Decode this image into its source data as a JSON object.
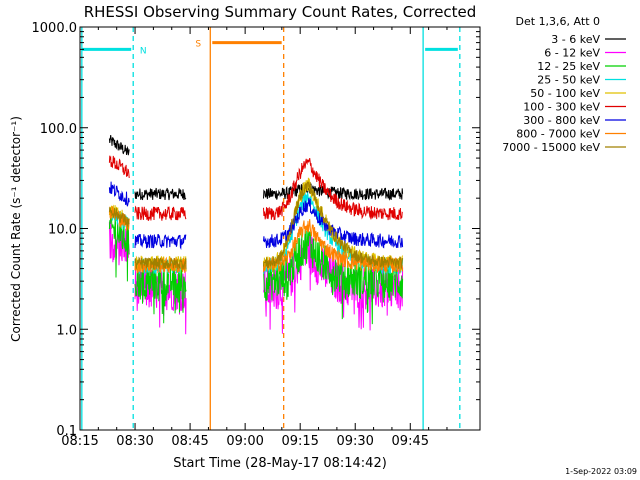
{
  "chart_data": {
    "type": "line",
    "title": "RHESSI Observing Summary Count Rates, Corrected",
    "xlabel": "Start Time (28-May-17 08:14:42)",
    "ylabel": "Corrected Count Rate (s⁻¹ detector⁻¹)",
    "x_unit": "minutes of day",
    "xlim": [
      495,
      604
    ],
    "ylim": [
      0.1,
      1000
    ],
    "yscale": "log",
    "grid": false,
    "legend_position": "outside-right",
    "x_ticks": [
      {
        "t": 495,
        "label": "08:15"
      },
      {
        "t": 510,
        "label": "08:30"
      },
      {
        "t": 525,
        "label": "08:45"
      },
      {
        "t": 540,
        "label": "09:00"
      },
      {
        "t": 555,
        "label": "09:15"
      },
      {
        "t": 570,
        "label": "09:30"
      },
      {
        "t": 585,
        "label": "09:45"
      }
    ],
    "y_ticks": [
      {
        "v": 0.1,
        "label": "0.1"
      },
      {
        "v": 1,
        "label": "1.0"
      },
      {
        "v": 10,
        "label": "10.0"
      },
      {
        "v": 100,
        "label": "100.0"
      },
      {
        "v": 1000,
        "label": "1000.0"
      }
    ],
    "legend_title": "Det 1,3,6, Att 0",
    "series": [
      {
        "name": "3 - 6 keV",
        "color": "#000000",
        "base": 22,
        "burst": 1.15,
        "noise": 0.06
      },
      {
        "name": "6 - 12 keV",
        "color": "#ff00ff",
        "base": 2.5,
        "burst": 2.4,
        "noise": 0.22
      },
      {
        "name": "12 - 25 keV",
        "color": "#00d000",
        "base": 3.0,
        "burst": 2.4,
        "noise": 0.2
      },
      {
        "name": "25 - 50 keV",
        "color": "#00e0e0",
        "base": 4.2,
        "burst": 5.0,
        "noise": 0.08
      },
      {
        "name": "50 - 100 keV",
        "color": "#e0c000",
        "base": 4.5,
        "burst": 6.0,
        "noise": 0.08
      },
      {
        "name": "100 - 300 keV",
        "color": "#e00000",
        "base": 14,
        "burst": 3.2,
        "noise": 0.07
      },
      {
        "name": "300 - 800 keV",
        "color": "#0000e0",
        "base": 7.5,
        "burst": 2.3,
        "noise": 0.07
      },
      {
        "name": "800 - 7000 keV",
        "color": "#ff8000",
        "base": 4.3,
        "burst": 2.5,
        "noise": 0.08
      },
      {
        "name": "7000 - 15000 keV",
        "color": "#a08000",
        "base": 4.5,
        "burst": 6.0,
        "noise": 0.06
      }
    ],
    "segments": [
      {
        "start": 503.0,
        "end": 508.5,
        "level": 2.5
      },
      {
        "start": 510.0,
        "end": 524.0,
        "level": 1.0
      },
      {
        "start": 545.0,
        "end": 583.0,
        "level": 1.0
      }
    ],
    "flare_peak_time": 557.5,
    "state_bars": [
      {
        "label": "N",
        "color": "#00e0e0",
        "t0": 495,
        "t1": 509.5,
        "tick_t": 509.5,
        "value": 600,
        "style": "dashed"
      },
      {
        "label": "S",
        "color": "#ff8000",
        "t0": 530.5,
        "t1": 550.5,
        "value": 700,
        "style": "dashed"
      },
      {
        "label": "",
        "color": "#00e0e0",
        "t0": 588.5,
        "t1": 598.5,
        "value": 600,
        "style": "dashed"
      }
    ],
    "vertical_markers": [
      {
        "t": 495.5,
        "color": "#00e0e0",
        "style": "solid"
      },
      {
        "t": 509.5,
        "color": "#00e0e0",
        "style": "dashed"
      },
      {
        "t": 530.5,
        "color": "#ff8000",
        "style": "solid"
      },
      {
        "t": 550.5,
        "color": "#ff8000",
        "style": "dashed"
      },
      {
        "t": 588.5,
        "color": "#00e0e0",
        "style": "solid"
      },
      {
        "t": 598.5,
        "color": "#00e0e0",
        "style": "dashed"
      }
    ]
  },
  "footer": {
    "timestamp": "1-Sep-2022 03:09"
  }
}
